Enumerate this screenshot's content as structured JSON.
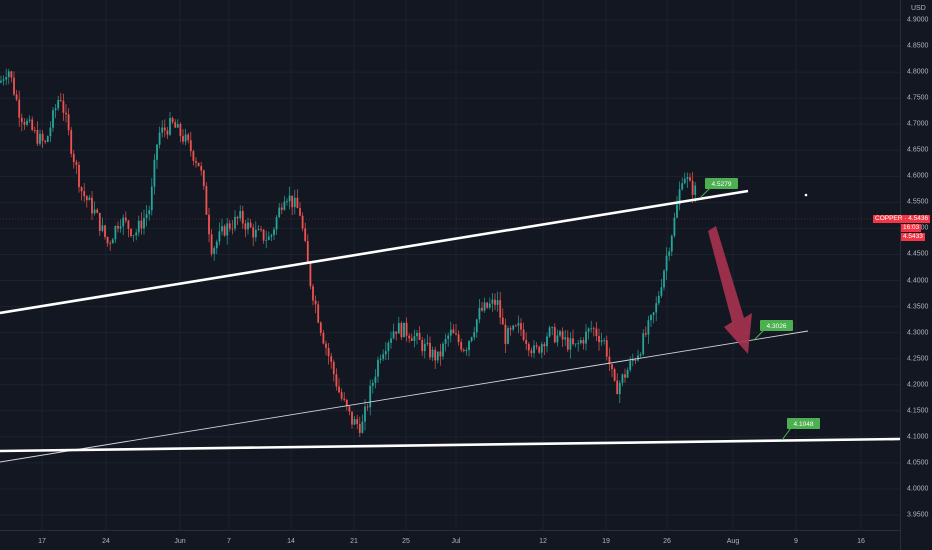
{
  "price_axis": {
    "currency": "USD",
    "ticks": [
      "4.9000",
      "4.8500",
      "4.8000",
      "4.7500",
      "4.7000",
      "4.6500",
      "4.6000",
      "4.5500",
      "4.5000",
      "4.4500",
      "4.4000",
      "4.3500",
      "4.3000",
      "4.2500",
      "4.2000",
      "4.1500",
      "4.1000",
      "4.0500",
      "4.0000",
      "3.9500"
    ],
    "tick_values": [
      4.9,
      4.85,
      4.8,
      4.75,
      4.7,
      4.65,
      4.6,
      4.55,
      4.5,
      4.45,
      4.4,
      4.35,
      4.3,
      4.25,
      4.2,
      4.15,
      4.1,
      4.05,
      4.0,
      3.95
    ]
  },
  "time_axis": {
    "labels": [
      "17",
      "24",
      "Jun",
      "7",
      "14",
      "21",
      "25",
      "Jul",
      "12",
      "19",
      "26",
      "Aug",
      "9",
      "16"
    ]
  },
  "symbol_tag": {
    "symbol": "COPPER",
    "price": "4.5436",
    "countdown": "16:03",
    "close": "4.5433",
    "value": 4.5436
  },
  "annotations": {
    "label_upper": "4.5279",
    "label_mid": "4.3026",
    "label_low": "4.1048"
  },
  "colors": {
    "background": "#131722",
    "bull": "#26a69a",
    "bear": "#ef5350",
    "line": "#ffffff",
    "arrow": "#a8324f",
    "label_bg": "#4caf50",
    "tag": "#f23645"
  },
  "chart_data": {
    "type": "candlestick",
    "instrument": "COPPER",
    "currency": "USD",
    "ylim": [
      3.93,
      4.93
    ],
    "x_labels": [
      "17",
      "24",
      "Jun",
      "7",
      "14",
      "21",
      "25",
      "Jul",
      "12",
      "19",
      "26",
      "Aug",
      "9",
      "16"
    ],
    "price_path": [
      [
        0,
        4.78
      ],
      [
        8,
        4.81
      ],
      [
        20,
        4.72
      ],
      [
        35,
        4.68
      ],
      [
        45,
        4.66
      ],
      [
        60,
        4.76
      ],
      [
        72,
        4.65
      ],
      [
        82,
        4.57
      ],
      [
        95,
        4.53
      ],
      [
        108,
        4.47
      ],
      [
        120,
        4.52
      ],
      [
        135,
        4.49
      ],
      [
        150,
        4.54
      ],
      [
        158,
        4.68
      ],
      [
        172,
        4.7
      ],
      [
        185,
        4.67
      ],
      [
        200,
        4.62
      ],
      [
        212,
        4.46
      ],
      [
        225,
        4.5
      ],
      [
        240,
        4.52
      ],
      [
        255,
        4.49
      ],
      [
        270,
        4.48
      ],
      [
        285,
        4.57
      ],
      [
        300,
        4.53
      ],
      [
        310,
        4.4
      ],
      [
        322,
        4.3
      ],
      [
        340,
        4.18
      ],
      [
        352,
        4.13
      ],
      [
        362,
        4.12
      ],
      [
        372,
        4.2
      ],
      [
        380,
        4.26
      ],
      [
        395,
        4.31
      ],
      [
        410,
        4.3
      ],
      [
        425,
        4.27
      ],
      [
        438,
        4.25
      ],
      [
        450,
        4.3
      ],
      [
        465,
        4.27
      ],
      [
        480,
        4.34
      ],
      [
        497,
        4.36
      ],
      [
        505,
        4.29
      ],
      [
        520,
        4.31
      ],
      [
        535,
        4.26
      ],
      [
        548,
        4.3
      ],
      [
        560,
        4.29
      ],
      [
        575,
        4.27
      ],
      [
        592,
        4.31
      ],
      [
        605,
        4.28
      ],
      [
        615,
        4.19
      ],
      [
        625,
        4.22
      ],
      [
        640,
        4.27
      ],
      [
        655,
        4.34
      ],
      [
        668,
        4.46
      ],
      [
        676,
        4.53
      ],
      [
        683,
        4.61
      ],
      [
        690,
        4.58
      ],
      [
        697,
        4.57
      ]
    ],
    "annotation_values": [
      4.5279,
      4.3026,
      4.1048
    ]
  }
}
